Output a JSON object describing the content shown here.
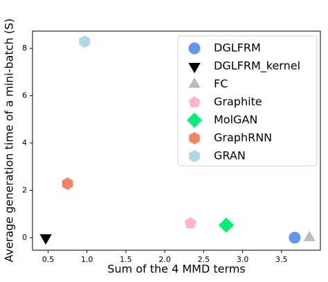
{
  "chart_data": {
    "type": "scatter",
    "xlabel": "Sum of the 4 MMD terms",
    "ylabel": "Average generation time of a mini-batch (S)",
    "xlim": [
      0.3,
      4.0
    ],
    "xticks": [
      {
        "value": 0.5,
        "label": "0.5"
      },
      {
        "value": 1,
        "label": "1.0"
      },
      {
        "value": 1.5,
        "label": "1.5"
      },
      {
        "value": 2,
        "label": "2.0"
      },
      {
        "value": 2.5,
        "label": "2.5"
      },
      {
        "value": 3,
        "label": "3.0"
      },
      {
        "value": 3.5,
        "label": "3.5"
      }
    ],
    "ylim": [
      -0.53,
      8.73
    ],
    "yticks": [
      0,
      2,
      4,
      6,
      8
    ],
    "legend": "upper right",
    "series": [
      {
        "name": "DGLFRM",
        "color": "#6495ed",
        "marker": "circle",
        "x": [
          3.67
        ],
        "values": [
          0
        ]
      },
      {
        "name": "DGLFRM_kernel",
        "color": "#000000",
        "marker": "triangle-down",
        "x": [
          0.47
        ],
        "values": [
          0
        ]
      },
      {
        "name": "FC",
        "color": "#bbbbbb",
        "marker": "triangle-up",
        "x": [
          3.86
        ],
        "values": [
          0
        ]
      },
      {
        "name": "Graphite",
        "color": "#ffb6c1",
        "marker": "pentagon",
        "x": [
          2.33
        ],
        "values": [
          0.61
        ]
      },
      {
        "name": "MolGAN",
        "color": "#00ee76",
        "marker": "diamond",
        "x": [
          2.79
        ],
        "values": [
          0.53
        ]
      },
      {
        "name": "GraphRNN",
        "color": "#f4845f",
        "marker": "hexagon",
        "x": [
          0.75
        ],
        "values": [
          2.28
        ]
      },
      {
        "name": "GRAN",
        "color": "#add8e6",
        "marker": "hexagon",
        "x": [
          0.97
        ],
        "values": [
          8.29
        ]
      }
    ]
  }
}
